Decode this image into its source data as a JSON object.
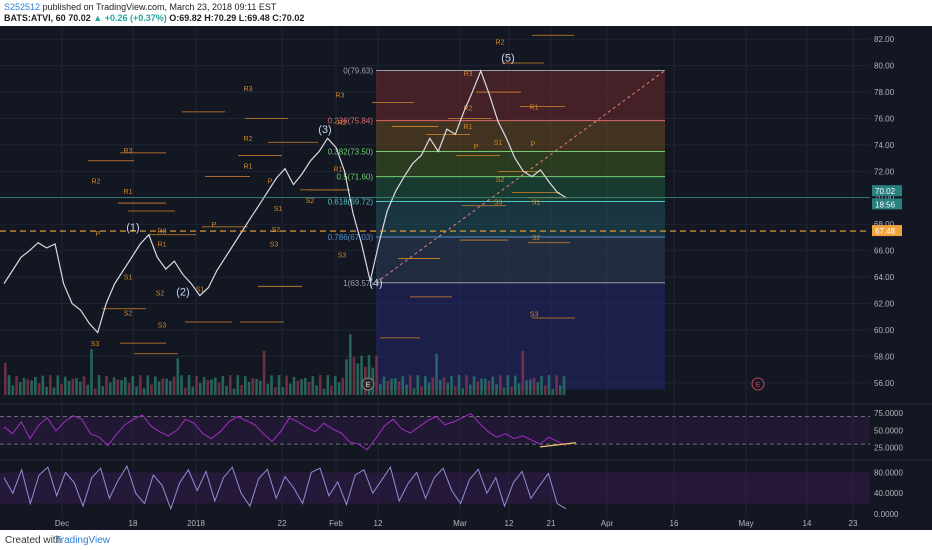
{
  "header": {
    "user": "S252512",
    "published": "published on TradingView.com, March 23, 2018 09:11 EST",
    "symbol": "BATS:ATVI, 60",
    "last": "70.02",
    "change_arrow": "▲",
    "change": "+0.26 (+0.37%)",
    "ohlc": "O:69.82 H:70.29 L:69.48 C:70.02"
  },
  "footer": {
    "created": "Created with",
    "brand": "TradingView"
  },
  "colors": {
    "bg": "#131722",
    "price": "#d8dbe3",
    "fib_line": "#e8a23a",
    "pivot": "#d4862a",
    "rsi": "#a22ec2",
    "stoch": "#8f8fd8",
    "accent": "#f2a33a"
  },
  "chart_data": [
    {
      "type": "line",
      "title": "BATS:ATVI, 60",
      "x_ticks": [
        "Dec",
        "18",
        "2018",
        "22",
        "Feb",
        "12",
        "Mar",
        "12",
        "21",
        "Apr",
        "16",
        "May",
        "14",
        "23"
      ],
      "y_ticks": [
        "82.00",
        "80.00",
        "78.00",
        "76.00",
        "74.00",
        "72.00",
        "70.00",
        "68.00",
        "66.00",
        "64.00",
        "62.00",
        "60.00",
        "58.00",
        "56.00"
      ],
      "ylim": [
        55,
        83
      ],
      "last_price": "70.02",
      "price_labels": [
        "70.02",
        "18:56",
        "67.48"
      ],
      "series": [
        {
          "values": [
            63.5,
            64.5,
            65.5,
            66,
            66.6,
            66.2,
            66.5,
            63.5,
            62,
            61.5,
            60.5,
            59.8,
            62,
            63.5,
            64.5,
            65.5,
            66.5,
            67.2,
            65.5,
            64.6,
            65.2,
            64.2,
            63.5,
            62.6,
            63.2,
            64.5,
            65.5,
            66.5,
            67.5,
            68.5,
            69.5,
            70.5,
            71.5,
            72.2,
            71,
            71.8,
            72.8,
            73.5,
            74.5,
            73.8,
            72,
            68.8,
            66.5,
            63.7,
            66.5,
            69,
            70.5,
            71.6,
            72.6,
            73.2,
            74.5,
            73.5,
            75.2,
            74.8,
            76.5,
            78,
            79.6,
            77.8,
            75.8,
            74.5,
            73,
            72,
            71.6,
            72.1,
            71.2,
            70.4,
            70.02
          ]
        }
      ],
      "waves": [
        "(1)",
        "(2)",
        "(3)",
        "(4)",
        "(5)"
      ],
      "fib_levels": [
        "0(79.63)",
        "0.236(75.84)",
        "0.382(73.50)",
        "0.5(71.60)",
        "0.618(69.72)",
        "0.786(67.03)",
        "1(63.57)"
      ],
      "pivots": [
        "R3",
        "R2",
        "R1",
        "P",
        "S1",
        "S2",
        "S3"
      ],
      "events": [
        "E",
        "E"
      ]
    },
    {
      "type": "line",
      "title": "",
      "y_ticks": [
        "75.0000",
        "50.0000",
        "25.0000"
      ],
      "ylim": [
        10,
        85
      ],
      "series": [
        {
          "values": [
            55,
            45,
            62,
            38,
            57,
            68,
            49,
            62,
            71,
            66,
            45,
            40,
            28,
            44,
            58,
            66,
            72,
            56,
            48,
            42,
            50,
            66,
            60,
            45,
            38,
            48,
            62,
            70,
            64,
            58,
            45,
            34,
            48,
            68,
            62,
            54,
            48,
            60,
            52,
            46,
            33,
            30,
            22,
            38,
            56,
            66,
            52,
            46,
            55,
            64,
            70,
            58,
            62,
            68,
            74,
            60,
            48,
            40,
            45,
            38,
            42,
            36,
            30,
            40,
            34,
            28
          ]
        }
      ]
    },
    {
      "type": "line",
      "title": "",
      "y_ticks": [
        "80.0000",
        "40.0000",
        "0.0000"
      ],
      "ylim": [
        0,
        100
      ],
      "series": [
        {
          "values": [
            70,
            40,
            85,
            20,
            75,
            90,
            35,
            80,
            60,
            15,
            70,
            88,
            30,
            65,
            92,
            40,
            20,
            75,
            55,
            10,
            60,
            85,
            45,
            82,
            25,
            70,
            90,
            40,
            15,
            68,
            86,
            30,
            72,
            50,
            20,
            80,
            88,
            35,
            62,
            18,
            75,
            85,
            40,
            65,
            90,
            25,
            58,
            80,
            30,
            70,
            88,
            45,
            20,
            66,
            86,
            40,
            70,
            15,
            60,
            82,
            30,
            55,
            78,
            20,
            10
          ]
        }
      ]
    }
  ]
}
